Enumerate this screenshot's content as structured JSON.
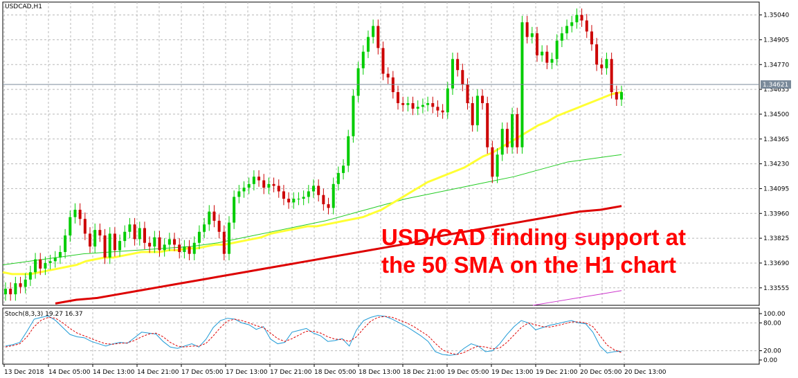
{
  "chart_data": [
    {
      "type": "candlestick",
      "title": "USDCAD,H1",
      "symbol": "USDCAD",
      "timeframe": "H1",
      "current_price_label": "1.34621",
      "y_tick_labels": [
        "1.35040",
        "1.34905",
        "1.34770",
        "1.34635",
        "1.34500",
        "1.34365",
        "1.34230",
        "1.34095",
        "1.33960",
        "1.33825",
        "1.33690",
        "1.33555"
      ],
      "ylim": [
        1.3346,
        1.3511
      ],
      "x_tick_labels": [
        "13 Dec 2018",
        "14 Dec 05:00",
        "14 Dec 13:00",
        "14 Dec 21:00",
        "17 Dec 05:00",
        "17 Dec 13:00",
        "17 Dec 21:00",
        "18 Dec 05:00",
        "18 Dec 13:00",
        "18 Dec 21:00",
        "19 Dec 05:00",
        "19 Dec 13:00",
        "19 Dec 21:00",
        "20 Dec 05:00",
        "20 Dec 13:00"
      ],
      "colors": {
        "up": "#00cc00",
        "down": "#cc0000",
        "sma50": "#ffff33",
        "sma_green": "#22cc22",
        "sma_red": "#dd0000",
        "sma_magenta": "#cc33cc"
      },
      "annotation": [
        "USD/CAD finding support at",
        "the 50 SMA on the H1 chart"
      ],
      "candles_close": [
        1.3355,
        1.3352,
        1.3358,
        1.3356,
        1.336,
        1.3364,
        1.3371,
        1.3366,
        1.3369,
        1.337,
        1.3372,
        1.3375,
        1.3384,
        1.3394,
        1.3398,
        1.3393,
        1.3385,
        1.3378,
        1.3387,
        1.3384,
        1.3372,
        1.3385,
        1.3376,
        1.3381,
        1.3386,
        1.339,
        1.3382,
        1.3388,
        1.338,
        1.3378,
        1.3383,
        1.3376,
        1.3379,
        1.3382,
        1.3379,
        1.3375,
        1.3378,
        1.3374,
        1.338,
        1.3386,
        1.339,
        1.3397,
        1.3392,
        1.3386,
        1.3374,
        1.3391,
        1.3405,
        1.3408,
        1.341,
        1.3412,
        1.3416,
        1.3414,
        1.341,
        1.3412,
        1.3411,
        1.3408,
        1.3404,
        1.3402,
        1.3404,
        1.3404,
        1.3405,
        1.3408,
        1.3411,
        1.3406,
        1.3401,
        1.3399,
        1.3412,
        1.3418,
        1.3422,
        1.3438,
        1.346,
        1.3475,
        1.3484,
        1.3492,
        1.3498,
        1.3486,
        1.3472,
        1.347,
        1.3462,
        1.3456,
        1.3455,
        1.3456,
        1.3453,
        1.3454,
        1.3455,
        1.3456,
        1.3454,
        1.3452,
        1.3451,
        1.3464,
        1.348,
        1.3474,
        1.3466,
        1.3456,
        1.3444,
        1.346,
        1.3456,
        1.3432,
        1.3416,
        1.3428,
        1.3442,
        1.3432,
        1.345,
        1.3432,
        1.35,
        1.3492,
        1.3494,
        1.3482,
        1.3484,
        1.3478,
        1.348,
        1.349,
        1.3494,
        1.3498,
        1.35,
        1.3504,
        1.3501,
        1.3495,
        1.3488,
        1.3477,
        1.3475,
        1.348,
        1.3462,
        1.3458,
        1.3462
      ],
      "sma50": [
        1.3364,
        1.3363,
        1.3363,
        1.3363,
        1.3364,
        1.3365,
        1.3366,
        1.3367,
        1.3368,
        1.337,
        1.3371,
        1.3372,
        1.3372,
        1.3373,
        1.3374,
        1.3375,
        1.3375,
        1.3375,
        1.3376,
        1.3376,
        1.3377,
        1.3377,
        1.3378,
        1.3379,
        1.3379,
        1.338,
        1.3381,
        1.3382,
        1.3383,
        1.3385,
        1.3386,
        1.3387,
        1.3388,
        1.3389,
        1.3389,
        1.339,
        1.3391,
        1.3392,
        1.3393,
        1.3394,
        1.3396,
        1.3398,
        1.3401,
        1.3404,
        1.3407,
        1.341,
        1.3413,
        1.3415,
        1.3417,
        1.3419,
        1.3421,
        1.3424,
        1.3427,
        1.3429,
        1.3432,
        1.3435,
        1.3438,
        1.3441,
        1.3444,
        1.3446,
        1.3449,
        1.3451,
        1.3453,
        1.3455,
        1.3457,
        1.3459,
        1.3461,
        1.3462
      ],
      "sma_green": [
        1.3368,
        1.337,
        1.3372,
        1.3374,
        1.3375,
        1.3376,
        1.3377,
        1.3378,
        1.338,
        1.3383,
        1.3386,
        1.3389,
        1.3392,
        1.3396,
        1.34,
        1.3404,
        1.3407,
        1.341,
        1.3413,
        1.3416,
        1.342,
        1.3424,
        1.3426,
        1.3428
      ],
      "sma_red": [
        1.3347,
        1.3349,
        1.335,
        1.3352,
        1.3354,
        1.3356,
        1.3358,
        1.336,
        1.3362,
        1.3364,
        1.3366,
        1.3368,
        1.337,
        1.3372,
        1.3374,
        1.3376,
        1.3378,
        1.338,
        1.3383,
        1.3385,
        1.3387,
        1.3389,
        1.3391,
        1.3393,
        1.3395,
        1.3397,
        1.3398,
        1.34
      ],
      "sma_magenta": [
        1.3346,
        1.3348,
        1.335,
        1.3352,
        1.3354
      ]
    },
    {
      "type": "line",
      "title": "Stoch(8,3,3) 19.27 16.37",
      "y_tick_labels": [
        "100.00",
        "80.00",
        "20.00",
        "0.00"
      ],
      "ylim": [
        0,
        100
      ],
      "series": [
        {
          "color": "#1e9ad6",
          "values": [
            30,
            33,
            38,
            62,
            88,
            92,
            95,
            85,
            70,
            55,
            50,
            48,
            40,
            35,
            30,
            35,
            38,
            36,
            48,
            60,
            58,
            56,
            40,
            28,
            25,
            30,
            35,
            28,
            45,
            70,
            85,
            90,
            88,
            80,
            76,
            66,
            72,
            45,
            35,
            38,
            60,
            64,
            68,
            58,
            52,
            40,
            42,
            46,
            30,
            65,
            85,
            92,
            96,
            94,
            88,
            80,
            72,
            62,
            52,
            40,
            18,
            12,
            10,
            12,
            25,
            35,
            30,
            18,
            20,
            35,
            55,
            72,
            85,
            80,
            65,
            70,
            75,
            78,
            82,
            85,
            80,
            78,
            60,
            30,
            15,
            18,
            19
          ]
        },
        {
          "color": "#dd0000",
          "values": [
            28,
            31,
            35,
            50,
            72,
            86,
            92,
            90,
            80,
            68,
            58,
            52,
            46,
            40,
            35,
            34,
            36,
            37,
            42,
            50,
            56,
            58,
            50,
            38,
            30,
            28,
            30,
            30,
            36,
            52,
            70,
            84,
            88,
            85,
            80,
            74,
            70,
            58,
            46,
            40,
            46,
            54,
            62,
            62,
            58,
            50,
            45,
            44,
            40,
            50,
            68,
            84,
            92,
            94,
            92,
            86,
            80,
            72,
            62,
            52,
            36,
            22,
            15,
            12,
            16,
            24,
            30,
            28,
            24,
            26,
            38,
            54,
            70,
            80,
            76,
            72,
            71,
            74,
            78,
            82,
            82,
            80,
            72,
            52,
            32,
            22,
            16
          ]
        }
      ]
    }
  ]
}
